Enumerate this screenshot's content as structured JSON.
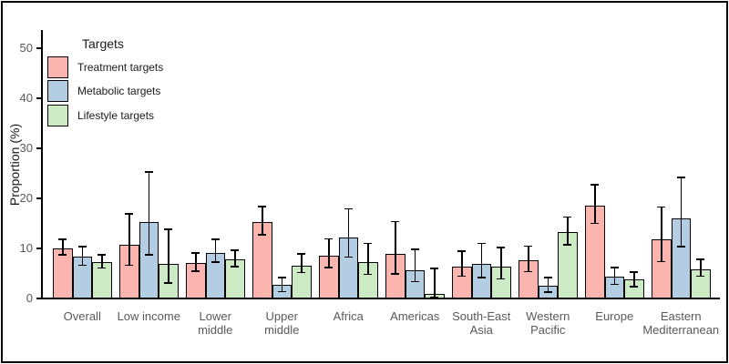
{
  "chart_data": {
    "type": "bar",
    "title": "",
    "legend_title": "Targets",
    "ylabel": "Proportion (%)",
    "ylim": [
      0,
      52
    ],
    "yticks": [
      0,
      10,
      20,
      30,
      40,
      50
    ],
    "grid": false,
    "legend_position": "top-left",
    "error_bars": true,
    "categories": [
      "Overall",
      "Low income",
      "Lower\nmiddle",
      "Upper\nmiddle",
      "Africa",
      "Americas",
      "South-East\nAsia",
      "Western\nPacific",
      "Europe",
      "Eastern\nMediterranean"
    ],
    "series": [
      {
        "name": "Treatment targets",
        "color": "#FBB4AE",
        "values": [
          10.0,
          10.7,
          7.1,
          15.3,
          8.5,
          8.9,
          6.3,
          7.6,
          18.5,
          11.8
        ],
        "ci_low": [
          8.7,
          6.6,
          5.5,
          12.7,
          6.2,
          4.9,
          4.5,
          5.4,
          15.0,
          7.4
        ],
        "ci_high": [
          11.8,
          16.9,
          9.1,
          18.4,
          11.9,
          15.4,
          9.5,
          10.5,
          22.7,
          18.3
        ]
      },
      {
        "name": "Metabolic targets",
        "color": "#B3CDE3",
        "values": [
          8.3,
          15.3,
          9.1,
          2.8,
          12.2,
          5.7,
          6.9,
          2.5,
          4.4,
          16.0
        ],
        "ci_low": [
          6.6,
          8.7,
          7.3,
          1.4,
          8.3,
          3.4,
          4.2,
          1.3,
          2.8,
          10.4
        ],
        "ci_high": [
          10.4,
          25.3,
          11.8,
          4.2,
          17.9,
          9.8,
          11.0,
          4.2,
          6.2,
          24.2
        ]
      },
      {
        "name": "Lifestyle targets",
        "color": "#CCEBC5",
        "values": [
          7.2,
          6.9,
          7.8,
          6.6,
          7.2,
          1.0,
          6.3,
          13.3,
          3.8,
          5.9
        ],
        "ci_low": [
          6.1,
          3.1,
          6.4,
          5.2,
          4.8,
          0.2,
          3.9,
          10.7,
          2.4,
          4.5
        ],
        "ci_high": [
          8.7,
          13.8,
          9.6,
          8.9,
          11.0,
          6.0,
          10.2,
          16.3,
          5.3,
          7.8
        ]
      }
    ]
  },
  "colors": {
    "bar_border": "#000000",
    "axis": "#000000",
    "tick_label": "#595959",
    "category_label": "#595959",
    "text": "#1a1a1a",
    "background": "#ffffff"
  }
}
